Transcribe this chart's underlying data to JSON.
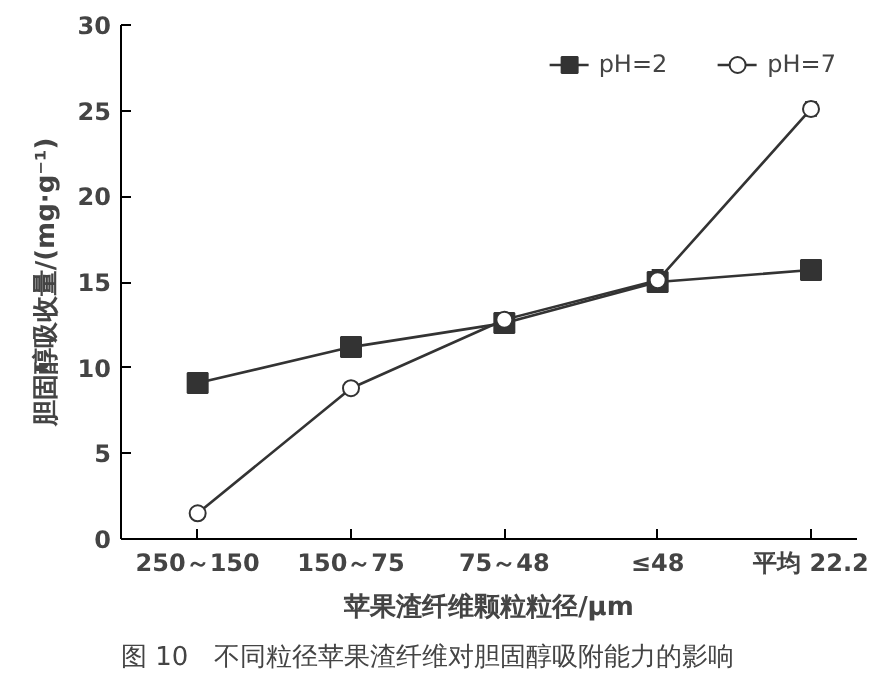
{
  "chart_data": {
    "type": "line",
    "xlabel": "苹果渣纤维颗粒粒径/μm",
    "ylabel": "胆固醇吸收量/(mg·g⁻¹)",
    "categories": [
      "250～150",
      "150～75",
      "75～48",
      "≤48",
      "平均 22.2"
    ],
    "series": [
      {
        "name": "pH=2",
        "color": "#333333",
        "marker": "square",
        "values": [
          9.1,
          11.2,
          12.6,
          15.0,
          15.7
        ]
      },
      {
        "name": "pH=7",
        "color": "#333333",
        "marker": "circle",
        "values": [
          1.5,
          8.8,
          12.8,
          15.1,
          25.1
        ],
        "errors": [
          null,
          null,
          null,
          0.6,
          0.4
        ]
      }
    ],
    "ylim": [
      0,
      30
    ],
    "yticks": [
      0,
      5,
      10,
      15,
      20,
      25,
      30
    ],
    "grid": false,
    "legend": "top right",
    "line_style": "solid",
    "annotations": [
      "图 10　不同粒径苹果渣纤维对胆固醇吸附能力的影响"
    ]
  }
}
